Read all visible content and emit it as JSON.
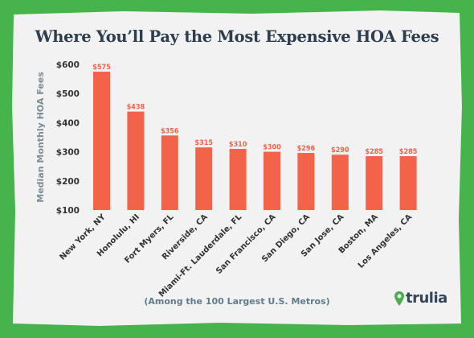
{
  "title": "Where You’ll Pay the Most Expensive HOA Fees",
  "footnote": "(Among the 100 Largest U.S. Metros)",
  "brand": "trulia",
  "colors": {
    "background": "#47b34c",
    "paper": "#f2f2f2",
    "bar": "#f2634a",
    "bar_label": "#f2634a",
    "axis_text": "#333333",
    "ylabel": "#7b8f99",
    "title": "#2d3e50",
    "logo_pin": "#48b04b"
  },
  "chart_data": {
    "type": "bar",
    "title": "Where You’ll Pay the Most Expensive HOA Fees",
    "xlabel": "",
    "ylabel": "Median Monthly HOA Fees",
    "categories": [
      "New York, NY",
      "Honolulu, HI",
      "Fort Myers, FL",
      "Riverside, CA",
      "Miami-Ft. Lauderdale, FL",
      "San Francisco, CA",
      "San Diego, CA",
      "San Jose, CA",
      "Boston, MA",
      "Los Angeles, CA"
    ],
    "values": [
      575,
      438,
      356,
      315,
      310,
      300,
      296,
      290,
      285,
      285
    ],
    "data_labels": [
      "$575",
      "$438",
      "$356",
      "$315",
      "$310",
      "$300",
      "$296",
      "$290",
      "$285",
      "$285"
    ],
    "ylim": [
      100,
      600
    ],
    "yticks": [
      100,
      200,
      300,
      400,
      500,
      600
    ],
    "ytick_labels": [
      "$100",
      "$200",
      "$300",
      "$400",
      "$500",
      "$600"
    ],
    "grid": false,
    "legend": "none"
  }
}
